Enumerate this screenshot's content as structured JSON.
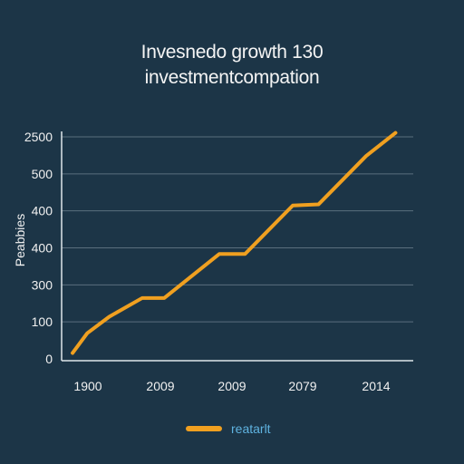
{
  "chart_data": {
    "type": "line",
    "title_lines": [
      "Invesnedo growth 130",
      "investmentcompation"
    ],
    "ylabel": "Peabbies",
    "xlabel": "",
    "y_tick_labels": [
      "0",
      "100",
      "300",
      "400",
      "400",
      "500",
      "2500"
    ],
    "x_tick_labels": [
      "1900",
      "2009",
      "2009",
      "2079",
      "2014"
    ],
    "grid": true,
    "legend_position": "bottom-center",
    "colors": {
      "background": "#1c3547",
      "line": "#f0a020",
      "grid": "#5a6f7e",
      "legend_text": "#5fb3e0"
    },
    "series": [
      {
        "name": "reatarlt",
        "points": [
          [
            0.05,
            0.1
          ],
          [
            0.25,
            1.0
          ],
          [
            0.55,
            1.75
          ],
          [
            1.0,
            2.6
          ],
          [
            1.3,
            2.6
          ],
          [
            2.05,
            4.6
          ],
          [
            2.4,
            4.6
          ],
          [
            3.05,
            6.8
          ],
          [
            3.4,
            6.85
          ],
          [
            4.05,
            9.05
          ],
          [
            4.45,
            10.1
          ]
        ]
      }
    ]
  },
  "legend": {
    "label": "reatarlt"
  }
}
